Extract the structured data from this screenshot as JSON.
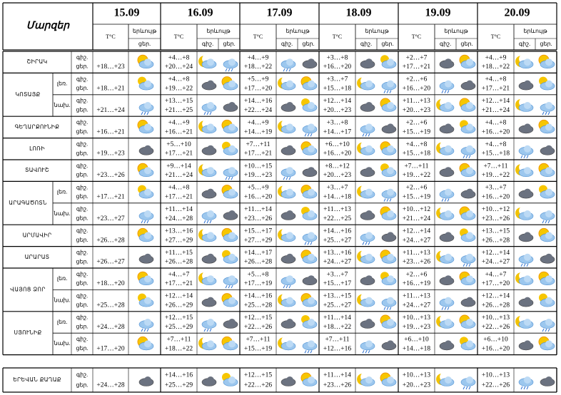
{
  "header": {
    "regions_label": "Մարզեր",
    "dates": [
      "15.09",
      "16.09",
      "17.09",
      "18.09",
      "19.09",
      "20.09"
    ],
    "temp_label": "T°C",
    "phenomena_label": "երևույթ",
    "night": "գիշ.",
    "day": "ցեր."
  },
  "groups": [
    {
      "name": "ՇԻՐԱԿ",
      "rows": [
        {
          "day1": "+18…+23",
          "temps": [
            [
              "+4…+8",
              "+20…+24"
            ],
            [
              "+4…+9",
              "+18…+22"
            ],
            [
              "+3…+8",
              "+16…+20"
            ],
            [
              "+2…+7",
              "+17…+21"
            ],
            [
              "+4…+9",
              "+18…+22"
            ]
          ]
        }
      ]
    },
    {
      "name": "ԿՈՏԱՅՔ",
      "rows": [
        {
          "sub": "լեռ.",
          "day1": "+18…+21",
          "temps": [
            [
              "+4…+8",
              "+19…+22"
            ],
            [
              "+5…+9",
              "+17…+20"
            ],
            [
              "+3…+7",
              "+15…+18"
            ],
            [
              "+2…+6",
              "+16…+20"
            ],
            [
              "+4…+8",
              "+17…+21"
            ]
          ]
        },
        {
          "sub": "նախ.",
          "day1": "+21…+24",
          "temps": [
            [
              "+13…+15",
              "+21…+25"
            ],
            [
              "+14…+16",
              "+22…+24"
            ],
            [
              "+12…+14",
              "+20…+23"
            ],
            [
              "+11…+13",
              "+20…+23"
            ],
            [
              "+12…+14",
              "+21…+24"
            ]
          ]
        }
      ]
    },
    {
      "name": "ԳԵՂԱՐՔՈՒՆԻՔ",
      "rows": [
        {
          "day1": "+16…+21",
          "temps": [
            [
              "+4…+9",
              "+16…+21"
            ],
            [
              "+4…+9",
              "+14…+19"
            ],
            [
              "+3…+8",
              "+14…+17"
            ],
            [
              "+2…+6",
              "+15…+19"
            ],
            [
              "+4…+8",
              "+16…+20"
            ]
          ]
        }
      ]
    },
    {
      "name": "ԼՈՌԻ",
      "rows": [
        {
          "day1": "+19…+23",
          "temps": [
            [
              "+5…+10",
              "+17…+21"
            ],
            [
              "+7…+11",
              "+17…+21"
            ],
            [
              "+6…+10",
              "+16…+20"
            ],
            [
              "+4…+8",
              "+15…+18"
            ],
            [
              "+4…+8",
              "+15…+18"
            ]
          ]
        }
      ]
    },
    {
      "name": "ՏԱՎՈՒՇ",
      "rows": [
        {
          "day1": "+23…+26",
          "temps": [
            [
              "+9…+14",
              "+21…+24"
            ],
            [
              "+10…+15",
              "+19…+23"
            ],
            [
              "+8…+12",
              "+20…+23"
            ],
            [
              "+7…+11",
              "+19…+22"
            ],
            [
              "+7…+11",
              "+19…+22"
            ]
          ]
        }
      ]
    },
    {
      "name": "ԱՐԱԳԱԾՈՏՆ",
      "rows": [
        {
          "sub": "լեռ.",
          "day1": "+17…+21",
          "temps": [
            [
              "+4…+8",
              "+17…+21"
            ],
            [
              "+5…+9",
              "+16…+20"
            ],
            [
              "+3…+7",
              "+14…+18"
            ],
            [
              "+2…+6",
              "+15…+19"
            ],
            [
              "+3…+7",
              "+16…+20"
            ]
          ]
        },
        {
          "sub": "նախ.",
          "day1": "+23…+27",
          "temps": [
            [
              "+11…+14",
              "+24…+28"
            ],
            [
              "+11…+14",
              "+23…+26"
            ],
            [
              "+11…+13",
              "+22…+25"
            ],
            [
              "+10…+12",
              "+21…+24"
            ],
            [
              "+10…+12",
              "+23…+26"
            ]
          ]
        }
      ]
    },
    {
      "name": "ԱՐՄԱՎԻՐ",
      "rows": [
        {
          "day1": "+26…+28",
          "temps": [
            [
              "+13…+16",
              "+27…+29"
            ],
            [
              "+15…+17",
              "+27…+29"
            ],
            [
              "+14…+16",
              "+25…+27"
            ],
            [
              "+12…+14",
              "+24…+27"
            ],
            [
              "+13…+15",
              "+26…+28"
            ]
          ]
        }
      ]
    },
    {
      "name": "ԱՐԱՐԱՏ",
      "rows": [
        {
          "day1": "+26…+27",
          "temps": [
            [
              "+11…+15",
              "+26…+28"
            ],
            [
              "+14…+17",
              "+26…+28"
            ],
            [
              "+13…+16",
              "+24…+27"
            ],
            [
              "+11…+13",
              "+23…+26"
            ],
            [
              "+12…+14",
              "+24…+27"
            ]
          ]
        }
      ]
    },
    {
      "name": "ՎԱՅՈՑ ՁՈՐ",
      "rows": [
        {
          "sub": "լեռ.",
          "day1": "+18…+20",
          "temps": [
            [
              "+4…+7",
              "+17…+21"
            ],
            [
              "+5…+8",
              "+17…+19"
            ],
            [
              "+3…+7",
              "+15…+17"
            ],
            [
              "+2…+6",
              "+16…+19"
            ],
            [
              "+4…+7",
              "+17…+20"
            ]
          ]
        },
        {
          "sub": "նախ.",
          "day1": "+25…+28",
          "temps": [
            [
              "+12…+14",
              "+26…+29"
            ],
            [
              "+14…+16",
              "+25…+28"
            ],
            [
              "+13…+15",
              "+25…+27"
            ],
            [
              "+11…+13",
              "+24…+27"
            ],
            [
              "+12…+14",
              "+26…+28"
            ]
          ]
        }
      ]
    },
    {
      "name": "ՍՅՈՒՆԻՔ",
      "rows": [
        {
          "sub": "լեռ.",
          "day1": "+24…+28",
          "temps": [
            [
              "+12…+15",
              "+25…+29"
            ],
            [
              "+12…+15",
              "+22…+26"
            ],
            [
              "+11…+14",
              "+18…+22"
            ],
            [
              "+10…+13",
              "+19…+23"
            ],
            [
              "+10…+13",
              "+22…+26"
            ]
          ]
        },
        {
          "sub": "նախ.",
          "day1": "+17…+20",
          "temps": [
            [
              "+7…+11",
              "+18…+22"
            ],
            [
              "+7…+11",
              "+15…+19"
            ],
            [
              "+7…+11",
              "+12…+16"
            ],
            [
              "+6…+10",
              "+14…+18"
            ],
            [
              "+6…+10",
              "+16…+20"
            ]
          ]
        }
      ]
    }
  ],
  "capital": {
    "name": "ԵՐԵՎԱՆ ՔԱՂԱՔ",
    "day1": "+24…+28",
    "temps": [
      [
        "+14…+16",
        "+25…+29"
      ],
      [
        "+12…+15",
        "+22…+26"
      ],
      [
        "+11…+14",
        "+23…+26"
      ],
      [
        "+10…+13",
        "+20…+23"
      ],
      [
        "+10…+13",
        "+22…+26"
      ]
    ]
  }
}
